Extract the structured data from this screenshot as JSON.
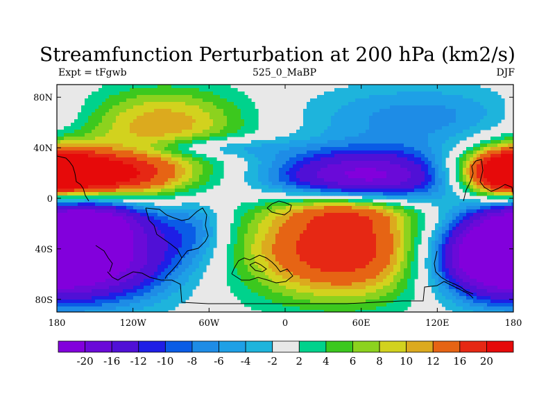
{
  "title": "Streamfunction Perturbation at 200 hPa (km2/s)",
  "subtitle_left": "Expt = tFgwb",
  "subtitle_center": "525_0_MaBP",
  "subtitle_right": "DJF",
  "map": {
    "projection": "cylindrical-equidistant",
    "lon_range": [
      -180,
      180
    ],
    "lat_range": [
      -90,
      90
    ],
    "background_color": "#e8e8e8",
    "coastline_color": "#000000",
    "lon_ticks": [
      {
        "value": -180,
        "label": "180"
      },
      {
        "value": -120,
        "label": "120W"
      },
      {
        "value": -60,
        "label": "60W"
      },
      {
        "value": 0,
        "label": "0"
      },
      {
        "value": 60,
        "label": "60E"
      },
      {
        "value": 120,
        "label": "120E"
      },
      {
        "value": 180,
        "label": "180"
      }
    ],
    "lat_ticks": [
      {
        "value": 80,
        "label": "80N"
      },
      {
        "value": 40,
        "label": "40N"
      },
      {
        "value": 0,
        "label": "0"
      },
      {
        "value": -40,
        "label": "40S"
      },
      {
        "value": -80,
        "label": "80S"
      }
    ],
    "field_blobs": [
      {
        "lon": -100,
        "lat": 60,
        "rlon": 50,
        "rlat": 20,
        "amp": 12
      },
      {
        "lon": -150,
        "lat": 18,
        "rlon": 52,
        "rlat": 14,
        "amp": 24
      },
      {
        "lon": 175,
        "lat": 22,
        "rlon": 25,
        "rlat": 14,
        "amp": 18
      },
      {
        "lon": -60,
        "lat": 40,
        "rlon": 40,
        "rlat": 6,
        "amp": -7
      },
      {
        "lon": 65,
        "lat": 16,
        "rlon": 55,
        "rlat": 16,
        "amp": -24
      },
      {
        "lon": 110,
        "lat": 65,
        "rlon": 70,
        "rlat": 18,
        "amp": -7
      },
      {
        "lon": -150,
        "lat": -45,
        "rlon": 45,
        "rlat": 25,
        "amp": -24
      },
      {
        "lon": -155,
        "lat": -15,
        "rlon": 30,
        "rlat": 12,
        "amp": -14
      },
      {
        "lon": 160,
        "lat": -45,
        "rlon": 32,
        "rlat": 22,
        "amp": -24
      },
      {
        "lon": 45,
        "lat": -40,
        "rlon": 55,
        "rlat": 28,
        "amp": 20
      },
      {
        "lon": 50,
        "lat": -8,
        "rlon": 40,
        "rlat": 10,
        "amp": 10
      },
      {
        "lon": -70,
        "lat": -25,
        "rlon": 18,
        "rlat": 18,
        "amp": -6
      },
      {
        "lon": 100,
        "lat": -45,
        "rlon": 20,
        "rlat": 25,
        "amp": -2
      }
    ]
  },
  "colorbar": {
    "levels": [
      "-20",
      "-16",
      "-12",
      "-10",
      "-8",
      "-6",
      "-4",
      "-2",
      "2",
      "4",
      "6",
      "8",
      "10",
      "12",
      "16",
      "20"
    ],
    "thresholds": [
      -20,
      -16,
      -12,
      -10,
      -8,
      -6,
      -4,
      -2,
      2,
      4,
      6,
      8,
      10,
      12,
      16,
      20
    ],
    "colors": [
      "#8200dc",
      "#6a0ad8",
      "#5010d6",
      "#1e1ee6",
      "#0a5ce6",
      "#1e8ce6",
      "#1ea0e6",
      "#1eb4dc",
      "#e8e8e8",
      "#00d28c",
      "#3cc81e",
      "#8cd21e",
      "#d2d21e",
      "#dcaa1e",
      "#e66414",
      "#e62814",
      "#e60a0a"
    ]
  }
}
